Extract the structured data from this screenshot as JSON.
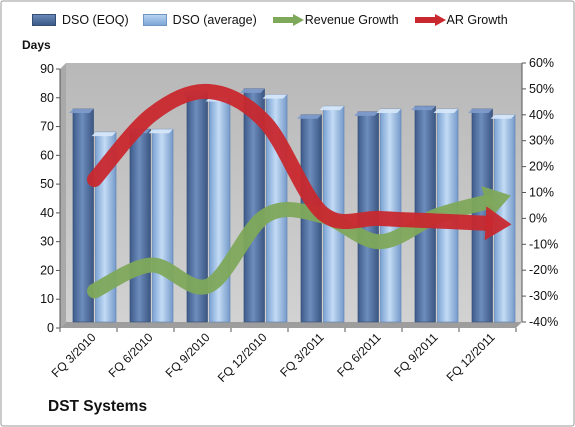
{
  "chart_data": {
    "type": "bar",
    "title": "DST Systems",
    "ylabel": "Days",
    "ylim": [
      0,
      90
    ],
    "yticks": [
      0,
      10,
      20,
      30,
      40,
      50,
      60,
      70,
      80,
      90
    ],
    "y2lim": [
      -40,
      60
    ],
    "y2ticks": [
      "-40%",
      "-30%",
      "-20%",
      "-10%",
      "0%",
      "10%",
      "20%",
      "30%",
      "40%",
      "50%",
      "60%"
    ],
    "categories": [
      "FQ 3/2010",
      "FQ 6/2010",
      "FQ 9/2010",
      "FQ 12/2010",
      "FQ 3/2011",
      "FQ 6/2011",
      "FQ 9/2011",
      "FQ 12/2011"
    ],
    "series": [
      {
        "name": "DSO (EOQ)",
        "type": "bar",
        "axis": "left",
        "values": [
          74,
          67,
          80,
          81,
          72,
          73,
          75,
          74
        ]
      },
      {
        "name": "DSO (average)",
        "type": "bar",
        "axis": "left",
        "values": [
          66,
          67,
          78,
          79,
          75,
          74,
          74,
          72
        ]
      },
      {
        "name": "Revenue Growth",
        "type": "line",
        "axis": "right",
        "unit": "%",
        "values": [
          -28,
          -18,
          -26,
          1,
          1,
          -9,
          1,
          7
        ]
      },
      {
        "name": "AR Growth",
        "type": "line",
        "axis": "right",
        "unit": "%",
        "values": [
          15,
          40,
          49,
          37,
          2,
          0,
          -1,
          -2
        ]
      }
    ],
    "grid": false,
    "legend_position": "top",
    "colors": {
      "bar_eoq": "#4f6fa0",
      "bar_avg": "#8fb3e0",
      "revenue": "#7ea85a",
      "ar": "#c8282e",
      "plot_bg": "#c0c0c0"
    }
  }
}
